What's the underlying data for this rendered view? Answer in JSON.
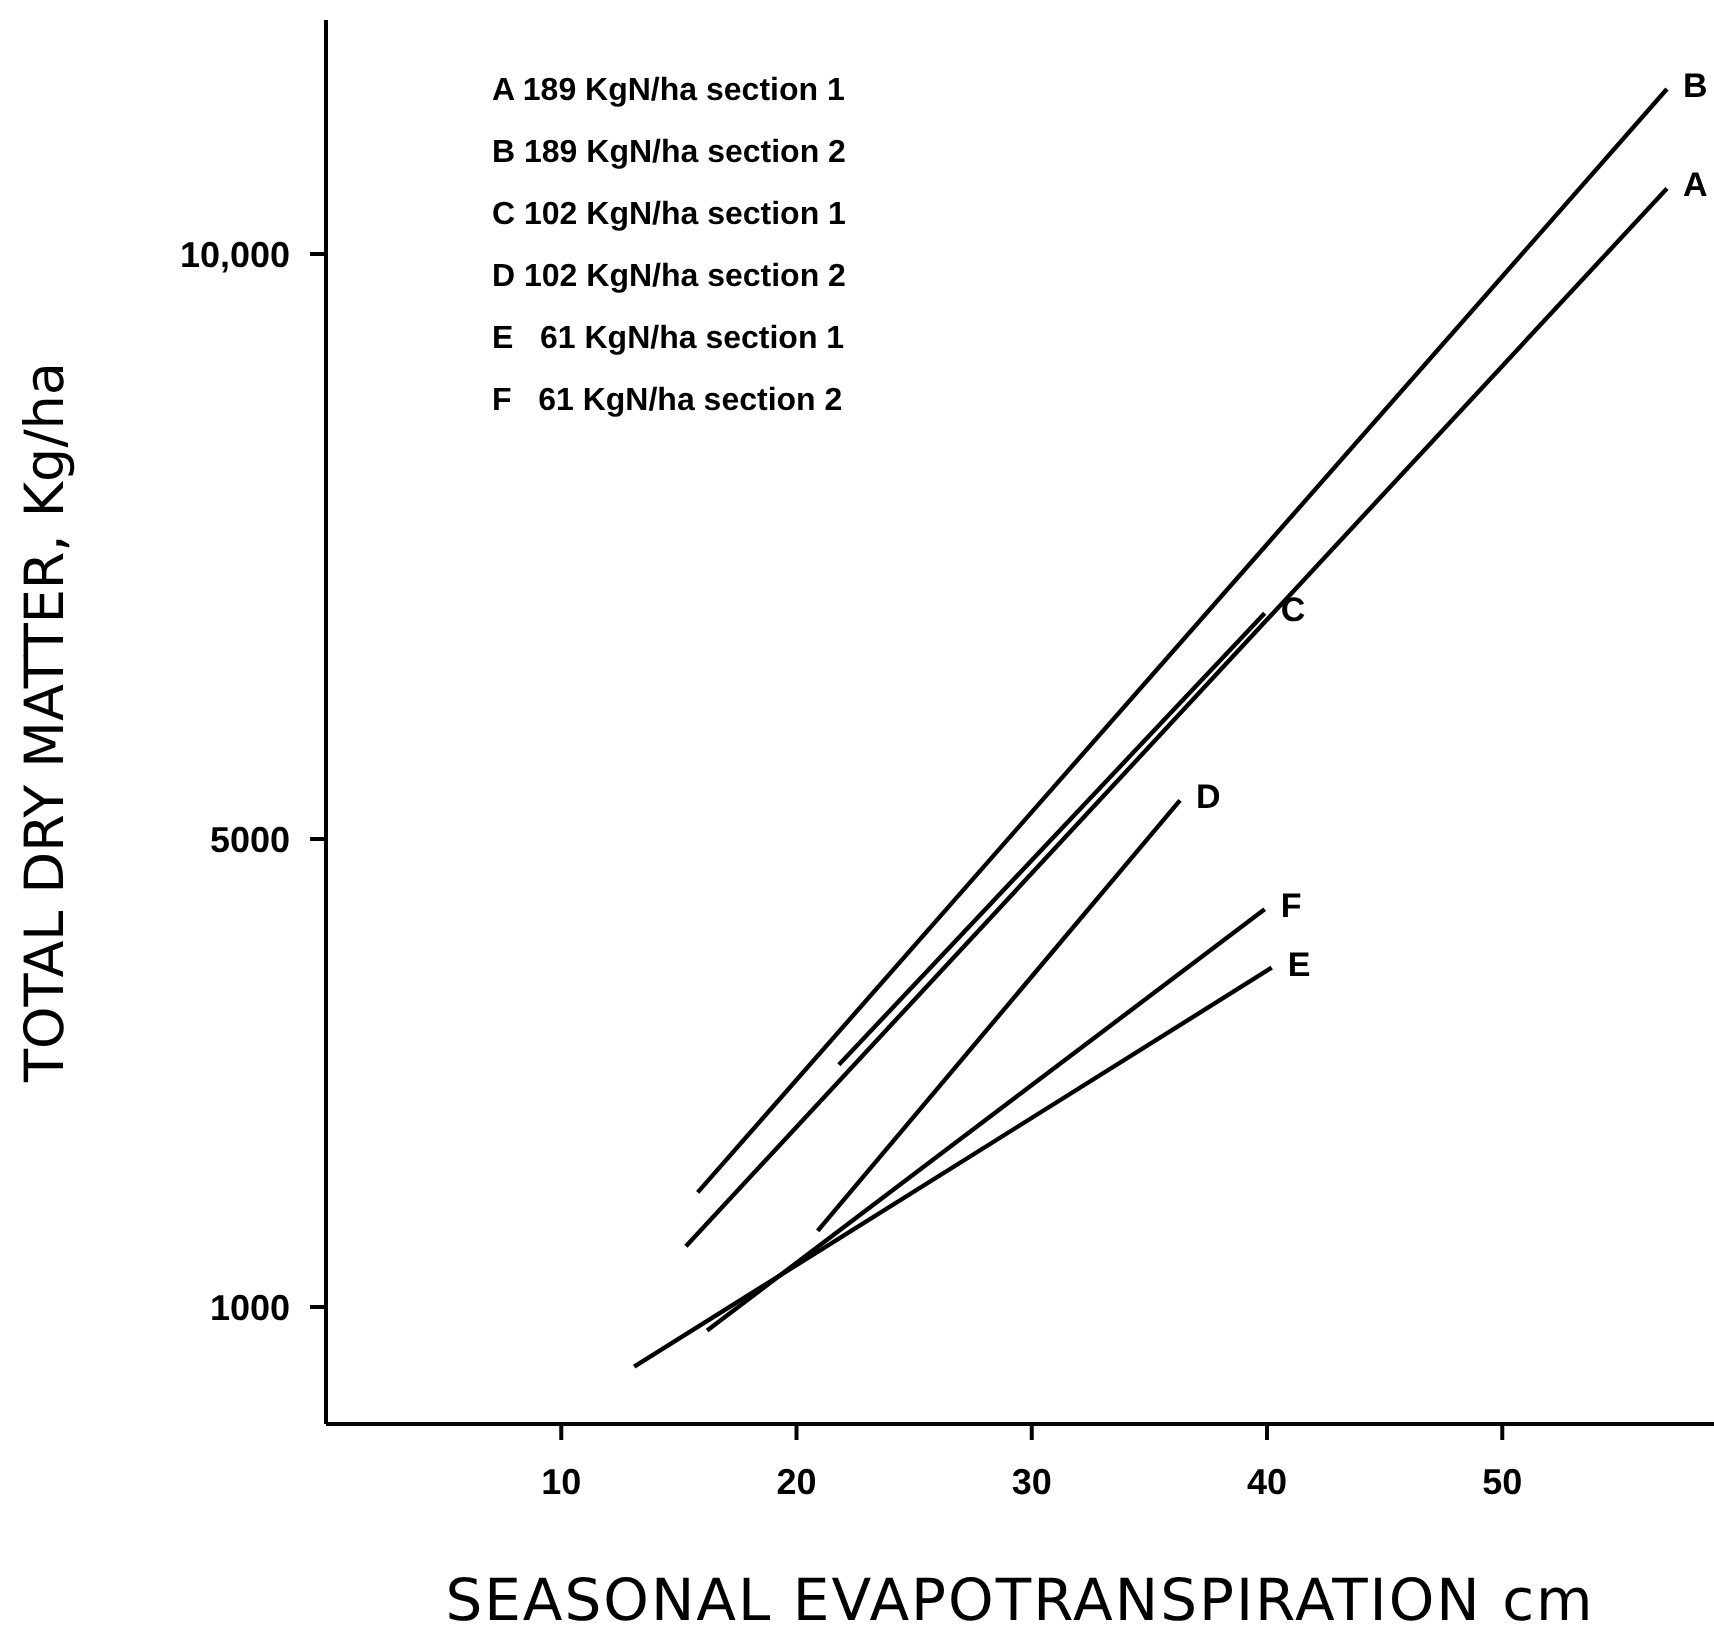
{
  "chart_data": {
    "type": "line",
    "xlabel": "SEASONAL EVAPOTRANSPIRATION  cm",
    "ylabel": "TOTAL DRY MATTER,  Kg/ha",
    "xlim": [
      0,
      59
    ],
    "xticks": [
      10,
      20,
      30,
      40,
      50
    ],
    "ylim": [
      0,
      12000
    ],
    "yticks": [
      {
        "value": 1000,
        "label": "1000"
      },
      {
        "value": 5000,
        "label": "5000"
      },
      {
        "value": 10000,
        "label": "10,000"
      }
    ],
    "grid": false,
    "legend": false,
    "marker": "none",
    "line_style": "solid",
    "annotations": [
      "A 189 KgN/ha section 1",
      "B 189 KgN/ha section 2",
      "C 102 KgN/ha section 1",
      "D 102 KgN/ha section 2",
      "E   61 KgN/ha section 1",
      "F   61 KgN/ha section 2"
    ],
    "series": [
      {
        "name": "A",
        "color": "#000000",
        "x": [
          15.3,
          57.0
        ],
        "values": [
          1520,
          10560
        ]
      },
      {
        "name": "B",
        "color": "#000000",
        "x": [
          15.8,
          57.0
        ],
        "values": [
          1980,
          11410
        ]
      },
      {
        "name": "C",
        "color": "#000000",
        "x": [
          21.8,
          39.9
        ],
        "values": [
          3070,
          6930
        ]
      },
      {
        "name": "D",
        "color": "#000000",
        "x": [
          20.9,
          36.3
        ],
        "values": [
          1650,
          5330
        ]
      },
      {
        "name": "E",
        "color": "#000000",
        "x": [
          13.1,
          40.2
        ],
        "values": [
          490,
          3900
        ]
      },
      {
        "name": "F",
        "color": "#000000",
        "x": [
          16.2,
          39.9
        ],
        "values": [
          800,
          4400
        ]
      }
    ]
  }
}
